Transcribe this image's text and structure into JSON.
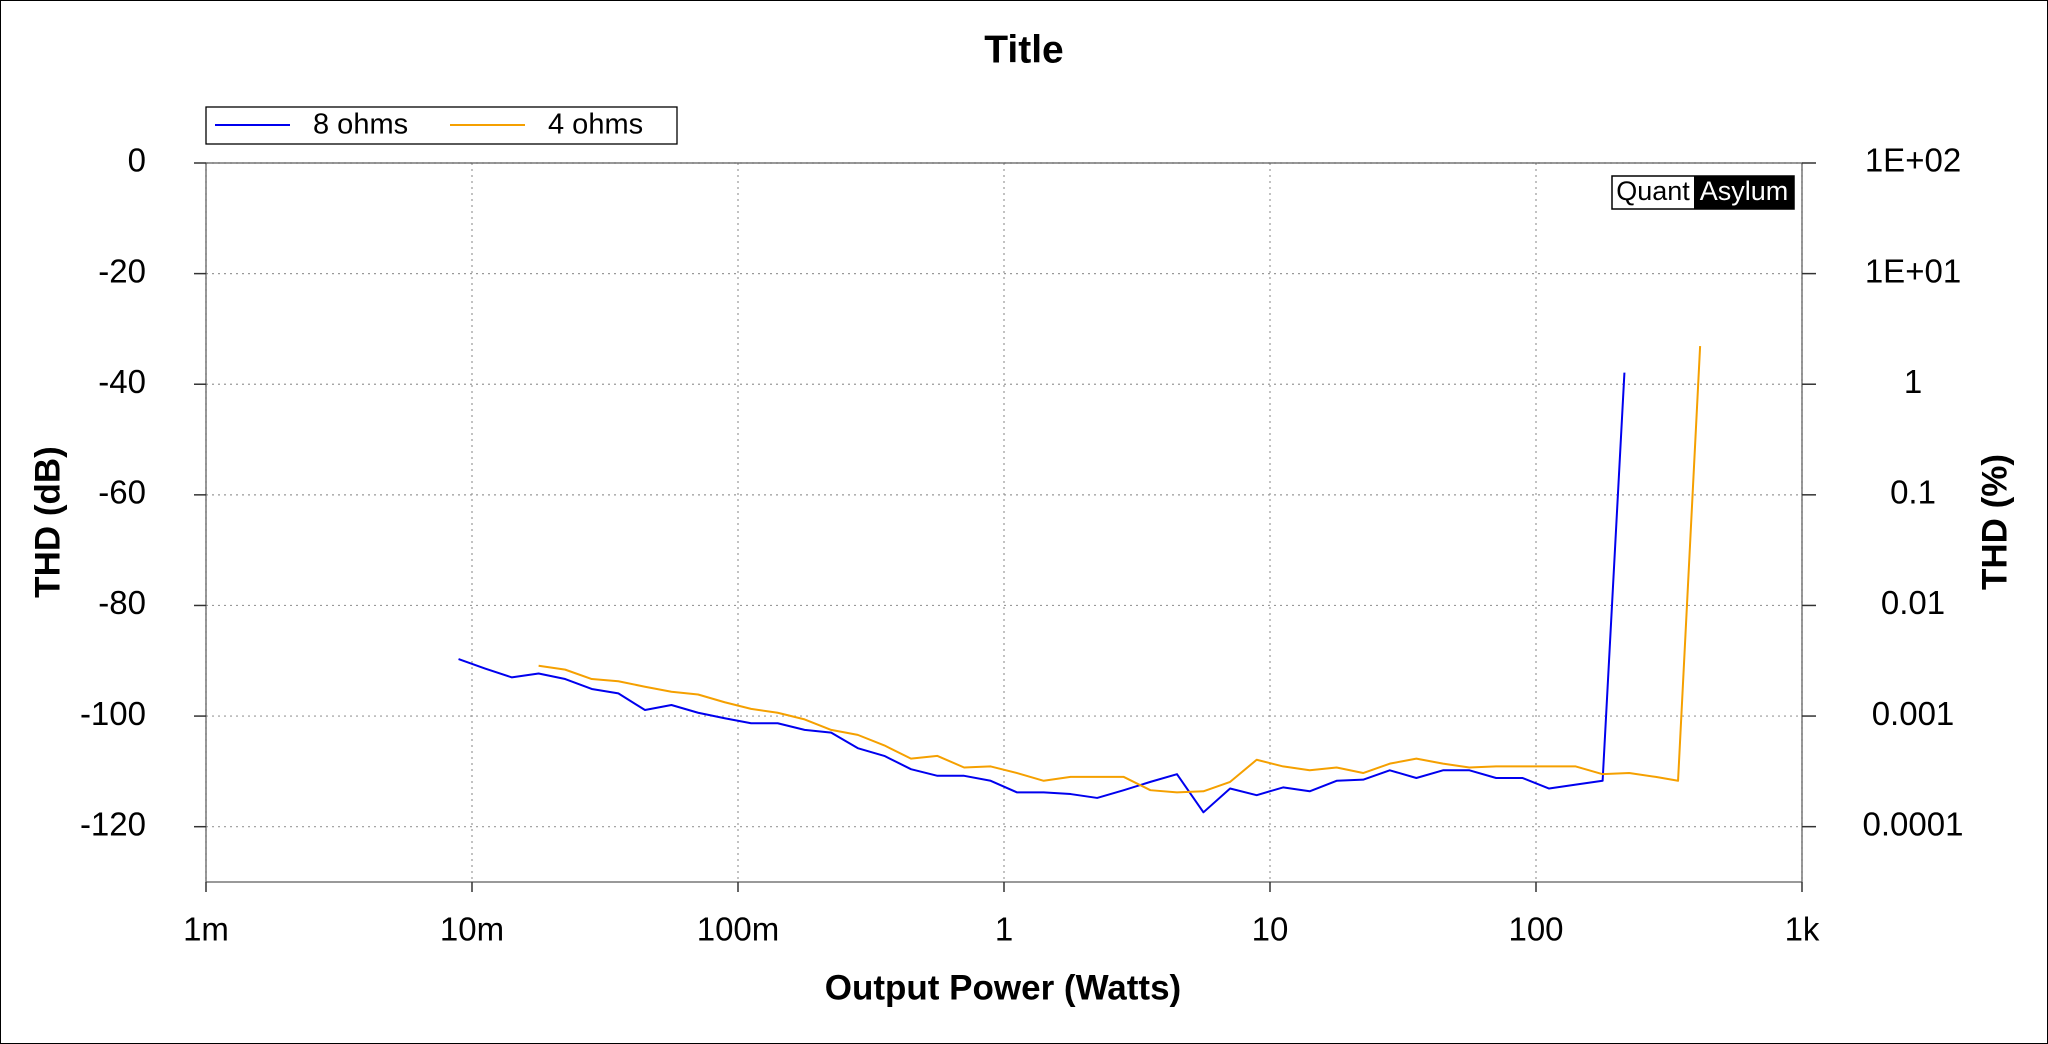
{
  "chart_data": {
    "type": "line",
    "title": "Title",
    "xlabel": "Output Power (Watts)",
    "ylabel": "THD (dB)",
    "y2label": "THD (%)",
    "logo": [
      "Quant",
      "Asylum"
    ],
    "xscale": "log",
    "y2scale": "log",
    "grid": true,
    "legend": "upper left",
    "xlim": [
      0.001,
      1000
    ],
    "xticks": [
      {
        "value": 0.001,
        "label": "1m"
      },
      {
        "value": 0.01,
        "label": "10m"
      },
      {
        "value": 0.1,
        "label": "100m"
      },
      1,
      10,
      100,
      {
        "value": 1000,
        "label": "1k"
      }
    ],
    "ylim": [
      -130,
      0
    ],
    "yticks": [
      0,
      -20,
      -40,
      -60,
      -80,
      -100,
      -120
    ],
    "y2lim": [
      3.16e-05,
      100
    ],
    "y2ticks": [
      {
        "value": 100,
        "label": "1E+02"
      },
      {
        "value": 10,
        "label": "1E+01"
      },
      1,
      0.1,
      0.01,
      0.001,
      0.0001
    ],
    "series": [
      {
        "name": "8 ohms",
        "color": "#0000ee",
        "x": [
          0.0089,
          0.0112,
          0.0141,
          0.0178,
          0.0224,
          0.0282,
          0.0355,
          0.0447,
          0.0562,
          0.0708,
          0.0891,
          0.112,
          0.141,
          0.178,
          0.224,
          0.282,
          0.355,
          0.447,
          0.562,
          0.708,
          0.891,
          1.12,
          1.41,
          1.78,
          2.24,
          2.82,
          3.55,
          4.47,
          5.62,
          7.08,
          8.91,
          11.2,
          14.1,
          17.8,
          22.4,
          28.2,
          35.5,
          44.7,
          56.2,
          70.8,
          89.1,
          112,
          141,
          178,
          215
        ],
        "values": [
          -89.7,
          -91.4,
          -93.0,
          -92.3,
          -93.3,
          -95.1,
          -95.9,
          -98.9,
          -98.0,
          -99.4,
          -100.4,
          -101.3,
          -101.3,
          -102.5,
          -103.0,
          -105.8,
          -107.2,
          -109.6,
          -110.8,
          -110.8,
          -111.7,
          -113.8,
          -113.8,
          -114.1,
          -114.8,
          -113.4,
          -111.9,
          -110.5,
          -117.4,
          -113.1,
          -114.3,
          -112.9,
          -113.6,
          -111.7,
          -111.5,
          -109.8,
          -111.2,
          -109.8,
          -109.8,
          -111.2,
          -111.2,
          -113.1,
          -112.4,
          -111.7,
          -37.9
        ]
      },
      {
        "name": "4 ohms",
        "color": "#f5a000",
        "x": [
          0.0178,
          0.0224,
          0.0282,
          0.0355,
          0.0447,
          0.0562,
          0.0708,
          0.0891,
          0.112,
          0.141,
          0.178,
          0.224,
          0.282,
          0.355,
          0.447,
          0.562,
          0.708,
          0.891,
          1.12,
          1.41,
          1.78,
          2.24,
          2.82,
          3.55,
          4.47,
          5.62,
          7.08,
          8.91,
          11.2,
          14.1,
          17.8,
          22.4,
          28.2,
          35.5,
          44.7,
          56.2,
          70.8,
          89.1,
          112,
          141,
          178,
          224,
          282,
          342,
          414
        ],
        "values": [
          -90.9,
          -91.6,
          -93.3,
          -93.7,
          -94.7,
          -95.6,
          -96.1,
          -97.5,
          -98.7,
          -99.4,
          -100.6,
          -102.5,
          -103.4,
          -105.3,
          -107.7,
          -107.2,
          -109.3,
          -109.1,
          -110.3,
          -111.7,
          -111.0,
          -111.0,
          -111.0,
          -113.4,
          -113.8,
          -113.6,
          -111.9,
          -107.9,
          -109.1,
          -109.8,
          -109.3,
          -110.3,
          -108.6,
          -107.7,
          -108.6,
          -109.3,
          -109.1,
          -109.1,
          -109.1,
          -109.1,
          -110.5,
          -110.3,
          -111.0,
          -111.7,
          -33.1
        ]
      }
    ]
  }
}
